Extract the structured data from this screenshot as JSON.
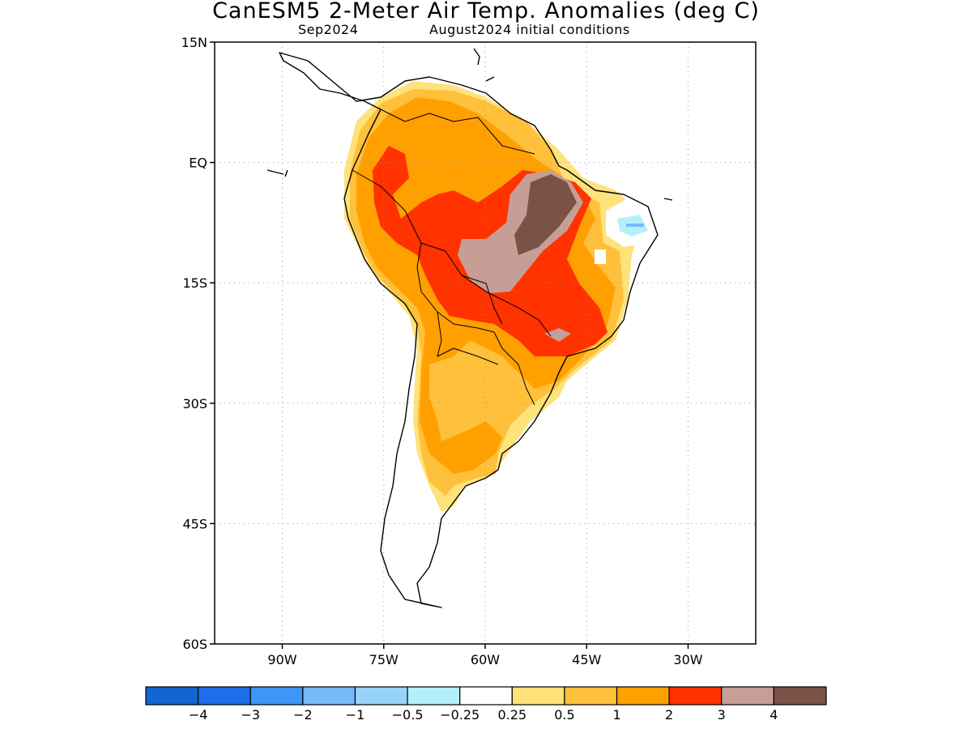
{
  "title": "CanESM5 2-Meter Air Temp. Anomalies (deg C)",
  "subtitle_left": "Sep2024",
  "subtitle_right": "August2024 initial conditions",
  "map": {
    "lon_range": [
      -100,
      -20
    ],
    "lat_range": [
      -60,
      15
    ],
    "lat_ticks": [
      {
        "value": 15,
        "label": "15N"
      },
      {
        "value": 0,
        "label": "EQ"
      },
      {
        "value": -15,
        "label": "15S"
      },
      {
        "value": -30,
        "label": "30S"
      },
      {
        "value": -45,
        "label": "45S"
      },
      {
        "value": -60,
        "label": "60S"
      }
    ],
    "lon_ticks": [
      {
        "value": -90,
        "label": "90W"
      },
      {
        "value": -75,
        "label": "75W"
      },
      {
        "value": -60,
        "label": "60W"
      },
      {
        "value": -45,
        "label": "45W"
      },
      {
        "value": -30,
        "label": "30W"
      }
    ],
    "grid": "dotted",
    "coastline_color": "#000000",
    "anomaly_regions": [
      {
        "level": "0.5 to 1",
        "color": "#fee27a"
      },
      {
        "level": "1 to 2",
        "color": "#ffc03c"
      },
      {
        "level": "2 to 3",
        "color": "#ffa000"
      },
      {
        "level": "3 to 4",
        "color": "#ff3200"
      },
      {
        "level": "4+",
        "color": "#c69e95"
      },
      {
        "level": "4+ (max)",
        "color": "#7a5346"
      },
      {
        "level": "-0.5 to -0.25",
        "color": "#b4f0fa"
      }
    ]
  },
  "colorbar": {
    "colors": [
      "#1464d2",
      "#1e6eeb",
      "#3c96f5",
      "#78b9fa",
      "#96d2fa",
      "#b4f0fa",
      "#ffffff",
      "#ffe278",
      "#ffc03c",
      "#ffa000",
      "#ff3200",
      "#c69e95",
      "#7a5346"
    ],
    "labels": [
      "−4",
      "−3",
      "−2",
      "−1",
      "−0.5",
      "−0.25",
      "0.25",
      "0.5",
      "1",
      "2",
      "3",
      "4"
    ]
  }
}
